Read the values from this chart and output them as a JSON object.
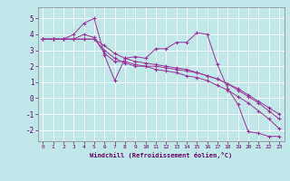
{
  "title": "",
  "xlabel": "Windchill (Refroidissement éolien,°C)",
  "ylabel": "",
  "bg_color": "#c0e8e8",
  "line_color": "#993399",
  "grid_color": "#ffffff",
  "xlim": [
    -0.5,
    23.5
  ],
  "ylim": [
    -2.7,
    5.7
  ],
  "yticks": [
    -2,
    -1,
    0,
    1,
    2,
    3,
    4,
    5
  ],
  "xticks": [
    0,
    1,
    2,
    3,
    4,
    5,
    6,
    7,
    8,
    9,
    10,
    11,
    12,
    13,
    14,
    15,
    16,
    17,
    18,
    19,
    20,
    21,
    22,
    23
  ],
  "series": [
    [
      3.7,
      3.7,
      3.7,
      4.0,
      4.7,
      5.0,
      2.7,
      1.1,
      2.5,
      2.6,
      2.5,
      3.1,
      3.1,
      3.5,
      3.5,
      4.1,
      4.0,
      2.1,
      0.6,
      -0.4,
      -2.1,
      -2.2,
      -2.4,
      -2.4
    ],
    [
      3.7,
      3.7,
      3.7,
      3.7,
      3.7,
      3.7,
      3.0,
      2.5,
      2.2,
      2.0,
      2.0,
      2.0,
      1.9,
      1.8,
      1.7,
      1.6,
      1.4,
      1.2,
      0.9,
      0.6,
      0.2,
      -0.2,
      -0.6,
      -1.0
    ],
    [
      3.7,
      3.7,
      3.7,
      3.7,
      3.7,
      3.7,
      3.3,
      2.8,
      2.5,
      2.3,
      2.2,
      2.1,
      2.0,
      1.9,
      1.8,
      1.6,
      1.4,
      1.2,
      0.9,
      0.5,
      0.1,
      -0.3,
      -0.8,
      -1.3
    ],
    [
      3.7,
      3.7,
      3.7,
      3.7,
      4.0,
      3.8,
      2.8,
      2.3,
      2.3,
      2.1,
      2.0,
      1.8,
      1.7,
      1.6,
      1.4,
      1.3,
      1.1,
      0.8,
      0.5,
      0.1,
      -0.3,
      -0.8,
      -1.3,
      -1.9
    ]
  ]
}
